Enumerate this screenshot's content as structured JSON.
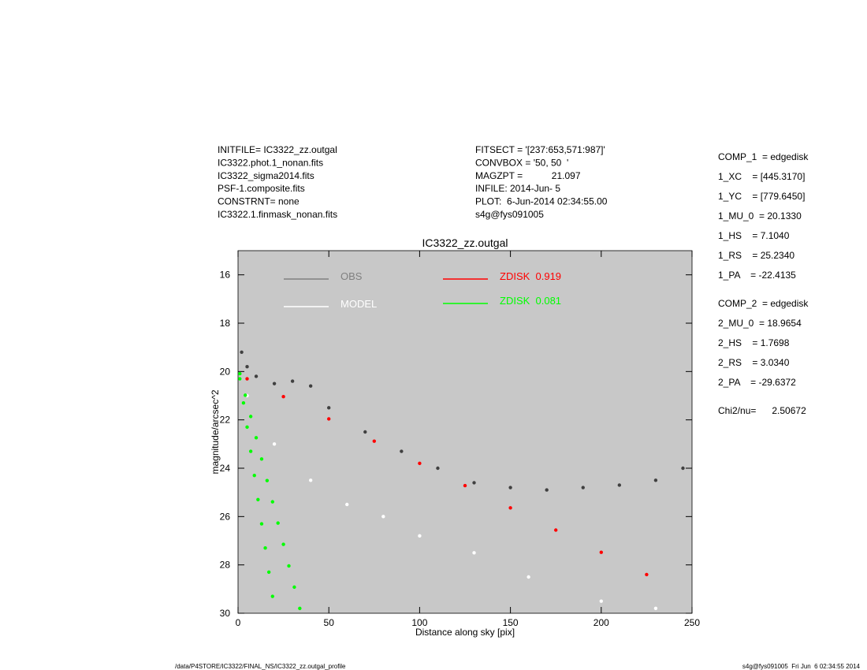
{
  "info": {
    "left": [
      "INITFILE= IC3322_zz.outgal",
      "IC3322.phot.1_nonan.fits",
      "IC3322_sigma2014.fits",
      "PSF-1.composite.fits",
      "CONSTRNT= none",
      "IC3322.1.finmask_nonan.fits"
    ],
    "middle": [
      "FITSECT = '[237:653,571:987]'",
      "CONVBOX = '50, 50  '",
      "MAGZPT =           21.097",
      "INFILE: 2014-Jun- 5",
      "PLOT:  6-Jun-2014 02:34:55.00",
      "s4g@fys091005"
    ],
    "params": [
      [
        "COMP_1  = edgedisk",
        "1_XC    = [445.3170]",
        "1_YC    = [779.6450]",
        "1_MU_0  = 20.1330",
        "1_HS    = 7.1040",
        "1_RS    = 25.2340",
        "1_PA    = -22.4135"
      ],
      [
        "COMP_2  = edgedisk",
        "2_MU_0  = 18.9654",
        "2_HS    = 1.7698",
        "2_RS    = 3.0340",
        "2_PA    = -29.6372"
      ],
      [
        "Chi2/nu=      2.50672"
      ]
    ]
  },
  "footer": {
    "left": "/data/P4STORE/IC3322/FINAL_NS/IC3322_zz.outgal_profile",
    "right": "s4g@fys091005  Fri Jun  6 02:34:55 2014"
  },
  "chart_data": {
    "type": "scatter",
    "title": "IC3322_zz.outgal",
    "x_label": "Distance along sky [pix]",
    "y_label": "magnitude/arcsec^2",
    "xlim": [
      0,
      250
    ],
    "ylim": [
      30,
      15
    ],
    "xticks": [
      0,
      50,
      100,
      150,
      200,
      250
    ],
    "yticks": [
      16,
      18,
      20,
      22,
      24,
      26,
      28,
      30
    ],
    "background": "#c8c8c8",
    "series": [
      {
        "name": "OBS",
        "color": "#808080",
        "point_color": "#404040",
        "x": [
          2,
          5,
          10,
          20,
          30,
          40,
          50,
          70,
          90,
          110,
          130,
          150,
          170,
          190,
          210,
          230,
          245
        ],
        "y": [
          19.2,
          19.8,
          20.2,
          20.5,
          20.4,
          20.6,
          21.5,
          22.5,
          23.3,
          24,
          24.6,
          24.8,
          24.9,
          24.8,
          24.7,
          24.5,
          24.0
        ]
      },
      {
        "name": "MODEL",
        "color": "#ffffff",
        "x": [
          5,
          20,
          40,
          60,
          80,
          100,
          130,
          160,
          200,
          230
        ],
        "y": [
          21,
          23,
          24.5,
          25.5,
          26,
          26.8,
          27.5,
          28.5,
          29.5,
          29.8
        ]
      },
      {
        "name": "ZDISK  0.919",
        "color": "#ff0000",
        "x": [
          5,
          25,
          50,
          75,
          100,
          125,
          150,
          175,
          200,
          225
        ],
        "y": [
          20.3,
          21.04,
          21.96,
          22.88,
          23.8,
          24.72,
          25.64,
          26.56,
          27.48,
          28.4
        ]
      },
      {
        "name": "ZDISK  0.081",
        "color": "#00ff00",
        "x": [
          1,
          4,
          7,
          10,
          13,
          16,
          19,
          22,
          25,
          28,
          31,
          34,
          1,
          3,
          5,
          7,
          9,
          11,
          13,
          15,
          17,
          19
        ],
        "y": [
          20.09,
          20.98,
          21.86,
          22.74,
          23.62,
          24.51,
          25.39,
          26.27,
          27.15,
          28.04,
          28.92,
          29.8,
          20.3,
          21.3,
          22.3,
          23.3,
          24.3,
          25.3,
          26.3,
          27.3,
          28.3,
          29.3
        ]
      }
    ]
  }
}
